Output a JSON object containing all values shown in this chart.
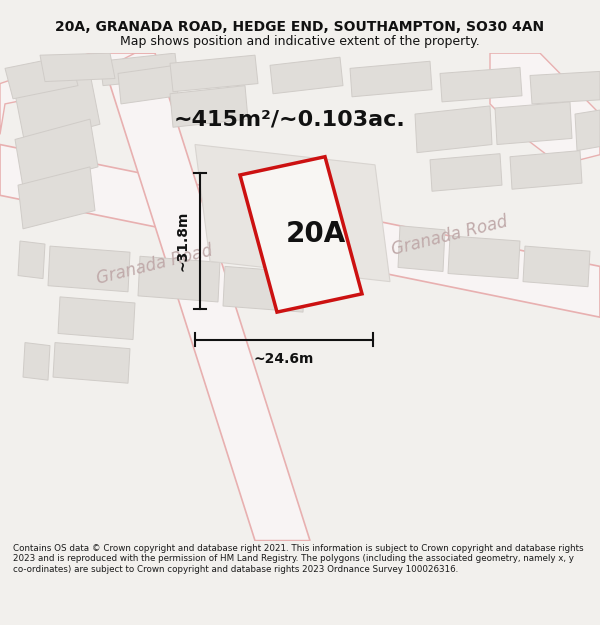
{
  "title_line1": "20A, GRANADA ROAD, HEDGE END, SOUTHAMPTON, SO30 4AN",
  "title_line2": "Map shows position and indicative extent of the property.",
  "area_label": "~415m²/~0.103ac.",
  "property_label": "20A",
  "dim_width": "~24.6m",
  "dim_height": "~31.8m",
  "road_label1": "Granada Road",
  "road_label2": "Granada Road",
  "footer_text": "Contains OS data © Crown copyright and database right 2021. This information is subject to Crown copyright and database rights 2023 and is reproduced with the permission of HM Land Registry. The polygons (including the associated geometry, namely x, y co-ordinates) are subject to Crown copyright and database rights 2023 Ordnance Survey 100026316.",
  "bg_color": "#f2f0ed",
  "map_bg": "#f8f6f3",
  "block_fill": "#e0ddd9",
  "block_edge": "#d0ccc8",
  "road_fill": "#f8f4f4",
  "road_edge": "#e8b0b0",
  "prop_fill": "#f8f6f3",
  "prop_edge": "#cc1111",
  "dim_color": "#111111",
  "road_text_color": "#c0aaaa",
  "text_color": "#111111",
  "title_fs": 10,
  "subtitle_fs": 9,
  "area_fs": 16,
  "prop_label_fs": 20,
  "dim_fs": 10,
  "road_fs": 12,
  "footer_fs": 6.3
}
